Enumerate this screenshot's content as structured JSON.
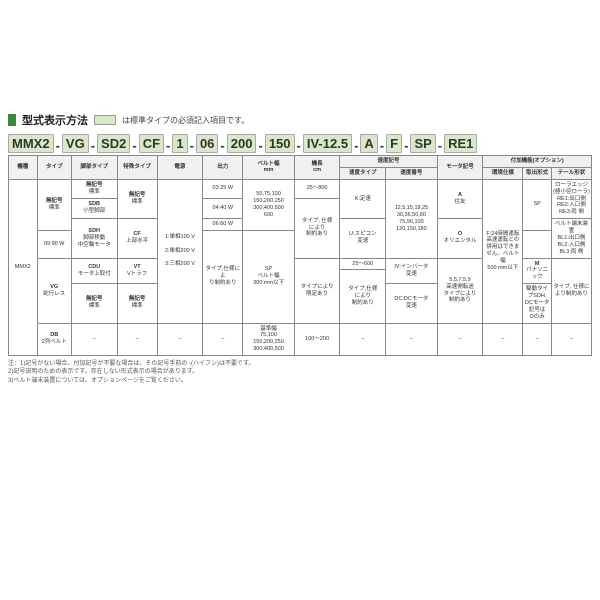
{
  "title": "型式表示方法",
  "swatch_caption": "は標準タイプの必須記入項目です。",
  "model_segments": [
    "MMX2",
    "VG",
    "SD2",
    "CF",
    "1",
    "06",
    "200",
    "150",
    "IV-12.5",
    "A",
    "F",
    "SP",
    "RE1"
  ],
  "headers_row1": [
    "機種",
    "タイプ",
    "脚部タイプ",
    "特殊タイプ",
    "電源",
    "出力",
    "ベルト幅\nmm",
    "機長\ncm",
    "速度記号",
    "モータ記号",
    "付加機能(オプション)"
  ],
  "headers_row2_speed": [
    "速度タイプ",
    "速度番号"
  ],
  "headers_row2_opt": [
    "環境仕様",
    "取出形式",
    "テール形状"
  ],
  "rows": {
    "kishu": "MMX2",
    "type1": {
      "code": "無記号",
      "label": "標準"
    },
    "type2": {
      "code": "VG",
      "label": "蛇行レス"
    },
    "type3": {
      "code": "DB",
      "label": "2列ベルト"
    },
    "leg1": {
      "code": "無記号",
      "label": "標準"
    },
    "leg2": {
      "code": "SDB",
      "label": "小型脚部"
    },
    "leg3": {
      "code": "SDH",
      "label": "脚部移動\n中空軸モータ"
    },
    "leg4": {
      "code": "CDU",
      "label": "モータ上取付"
    },
    "leg5": {
      "code": "無記号",
      "label": "標準"
    },
    "sp1": {
      "code": "無記号",
      "label": "標準"
    },
    "sp2": {
      "code": "CF",
      "label": "上部水平"
    },
    "sp3": {
      "code": "VT",
      "label": "Vトラフ"
    },
    "sp4": {
      "code": "無記号",
      "label": "標準"
    },
    "pwr1": "1:単相100 V",
    "pwr2": "2:単相200 V",
    "pwr3": "3:三相200 V",
    "out1": "03:25 W",
    "out2": "04:40 W",
    "out3": "06:60 W",
    "out4": "09:90 W",
    "out5": "タイプにより\n限定あり",
    "bw1": "50,75,100\n150,200,250\n300,400,500\n600",
    "bw2": "タイプ,仕様によ\nり制約あり",
    "bw3": "基準幅\n75,100\n150,200,250\n300,400,500",
    "len1": "25〜800",
    "len2": "タイプ, 仕様\nにより\n制約あり",
    "len3": "25〜600",
    "len4": "タイプ,仕様\nにより\n制約あり",
    "len5": "100〜200",
    "spd1": "K:定速",
    "spd2": "U:スピコン\n変速",
    "spd3": "IV:インバータ\n変速",
    "spd4": "DC:DCモータ\n変速",
    "spn1": "12.5,15,18,25\n30,36,50,60\n75,90,100\n120,150,180",
    "spn2": "5,5,7.5,9\n高速側転送\nタイプにより\n制約あり",
    "mot1": {
      "code": "A",
      "label": "住友"
    },
    "mot2": {
      "code": "O",
      "label": "オリエンタル"
    },
    "mot3": {
      "code": "M",
      "label": "パナソニック"
    },
    "mot4": "駆動タイプSDH,\nDCモータ記号は\nOのみ",
    "env1": "F:24時間運転\n高速運転との\n併用はできま\nせん。ベルト幅\n500 mm以下",
    "disp1": "SP",
    "disp2": "SP\nベルト幅\n300 mm以下",
    "disp3": "−",
    "tail1": "ローラエッジ\n(極小径ローラ)\nRE1:出口側\nRE2:入口側\nRE3:両 側",
    "tail2": "ベルト端末装置\nBL1:出口側\nBL2:入口側\nBL3:両 側",
    "tail3": "タイプ, 仕様に\nより制約あり",
    "tail4": "−"
  },
  "notes": [
    "注：1)記号がない場合、付加記号が不要な場合は、その記号手前の -(ハイフン)は不要です。",
    "2)記号説明のための表示です。存在しない形式表示の場合があります。",
    "3)ベルト端末装置については、オプションページをご覧ください。"
  ],
  "colors": {
    "accent": "#3a8a3f",
    "segbg": "#d8e8c8"
  }
}
